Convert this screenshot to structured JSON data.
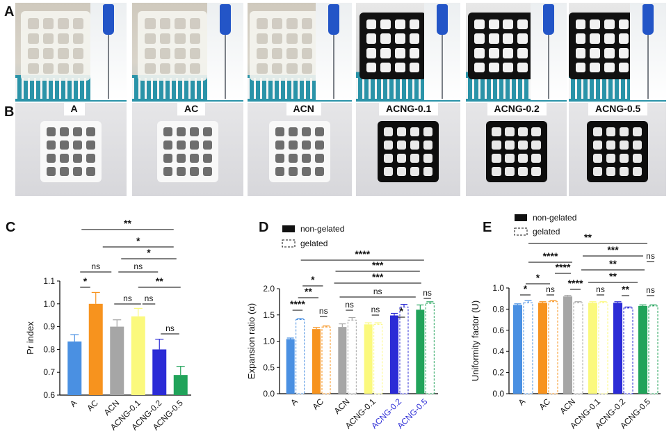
{
  "panel_letters": {
    "a": "A",
    "b": "B",
    "c": "C",
    "d": "D",
    "e": "E"
  },
  "sample_labels": [
    "A",
    "AC",
    "ACN",
    "ACNG-0.1",
    "ACNG-0.2",
    "ACNG-0.5"
  ],
  "colors": {
    "A": "#4a90e2",
    "AC": "#f7931e",
    "ACN": "#a6a6a6",
    "ACNG-0.1": "#fbf97d",
    "ACNG-0.2": "#2b2bd6",
    "ACNG-0.5": "#21a35a"
  },
  "chart_data": [
    {
      "type": "bar",
      "panel": "C",
      "categories": [
        "A",
        "AC",
        "ACN",
        "ACNG-0.1",
        "ACNG-0.2",
        "ACNG-0.5"
      ],
      "values": [
        0.835,
        1.0,
        0.9,
        0.945,
        0.8,
        0.688
      ],
      "errors": [
        0.03,
        0.05,
        0.03,
        0.035,
        0.045,
        0.038
      ],
      "ylabel": "Pr index",
      "ylim": [
        0.6,
        1.1
      ],
      "yticks": [
        "0.6",
        "0.7",
        "0.8",
        "0.9",
        "1.0",
        "1.1"
      ],
      "significance": [
        {
          "from": 2,
          "to": 4,
          "label": "ns"
        },
        {
          "from": 1,
          "to": 3,
          "label": "ns"
        },
        {
          "from": 3,
          "to": 4,
          "label": "ns"
        },
        {
          "from": 4,
          "to": 5,
          "label": "ns"
        },
        {
          "from": 0,
          "to": 2,
          "label": "ns"
        },
        {
          "from": 0,
          "to": 1,
          "label": "*"
        },
        {
          "from": 3,
          "to": 5,
          "label": "**"
        },
        {
          "from": 2,
          "to": 5,
          "label": "*"
        },
        {
          "from": 1,
          "to": 5,
          "label": "*"
        },
        {
          "from": 1,
          "to": 5,
          "label": "**"
        }
      ]
    },
    {
      "type": "bar",
      "panel": "D",
      "categories": [
        "A",
        "AC",
        "ACN",
        "ACNG-0.1",
        "ACNG-0.2",
        "ACNG-0.5"
      ],
      "series": [
        {
          "name": "non-gelated",
          "values": [
            1.04,
            1.23,
            1.27,
            1.32,
            1.49,
            1.6
          ],
          "errors": [
            0.02,
            0.03,
            0.06,
            0.03,
            0.04,
            0.09
          ]
        },
        {
          "name": "gelated",
          "values": [
            1.41,
            1.27,
            1.4,
            1.32,
            1.65,
            1.72
          ],
          "errors": [
            0.02,
            0.02,
            0.05,
            0.03,
            0.05,
            0.03
          ]
        }
      ],
      "legend": [
        "non-gelated",
        "gelated"
      ],
      "ylabel": "Expansion ratio (α)",
      "ylim": [
        0.0,
        2.0
      ],
      "yticks": [
        "0.0",
        "0.5",
        "1.0",
        "1.5",
        "2.0"
      ],
      "significance": [
        {
          "from": 0,
          "to": 0.5,
          "label": "****"
        },
        {
          "from": 0,
          "to": 1,
          "label": "**"
        },
        {
          "from": 0.5,
          "to": 1.5,
          "label": "*"
        },
        {
          "from": 1,
          "to": 1.5,
          "label": "ns"
        },
        {
          "from": 2,
          "to": 2.5,
          "label": "ns"
        },
        {
          "from": 3,
          "to": 3.5,
          "label": "ns"
        },
        {
          "from": 4,
          "to": 4.5,
          "label": "*"
        },
        {
          "from": 5,
          "to": 5.5,
          "label": "ns"
        },
        {
          "from": 1.5,
          "to": 5.5,
          "label": "ns"
        },
        {
          "from": 1.5,
          "to": 5.5,
          "label": "***"
        },
        {
          "from": 0,
          "to": 5.5,
          "label": "***"
        },
        {
          "from": 0,
          "to": 5.5,
          "label": "****"
        }
      ]
    },
    {
      "type": "bar",
      "panel": "E",
      "categories": [
        "A",
        "AC",
        "ACN",
        "ACNG-0.1",
        "ACNG-0.2",
        "ACNG-0.5"
      ],
      "series": [
        {
          "name": "non-gelated",
          "values": [
            0.84,
            0.86,
            0.92,
            0.86,
            0.86,
            0.83
          ],
          "errors": [
            0.01,
            0.01,
            0.01,
            0.01,
            0.01,
            0.01
          ]
        },
        {
          "name": "gelated",
          "values": [
            0.86,
            0.87,
            0.86,
            0.86,
            0.81,
            0.83
          ],
          "errors": [
            0.02,
            0.01,
            0.01,
            0.01,
            0.01,
            0.01
          ]
        }
      ],
      "legend": [
        "non-gelated",
        "gelated"
      ],
      "ylabel": "Uniformity factor (U)",
      "ylim": [
        0.0,
        1.0
      ],
      "yticks": [
        "0.0",
        "0.2",
        "0.4",
        "0.6",
        "0.8",
        "1.0"
      ],
      "significance": [
        {
          "from": 0,
          "to": 0.5,
          "label": "*"
        },
        {
          "from": 1,
          "to": 1.5,
          "label": "ns"
        },
        {
          "from": 2,
          "to": 2.5,
          "label": "****"
        },
        {
          "from": 3,
          "to": 3.5,
          "label": "ns"
        },
        {
          "from": 4,
          "to": 4.5,
          "label": "**"
        },
        {
          "from": 5,
          "to": 5.5,
          "label": "ns"
        },
        {
          "from": 0,
          "to": 1.5,
          "label": "*"
        },
        {
          "from": 2,
          "to": 4.5,
          "label": "ns"
        },
        {
          "from": 2,
          "to": 5.5,
          "label": "**"
        },
        {
          "from": 0,
          "to": 2.5,
          "label": "****"
        },
        {
          "from": 1,
          "to": 2.5,
          "label": "****"
        },
        {
          "from": 3,
          "to": 5.5,
          "label": "ns"
        },
        {
          "from": 2,
          "to": 5.5,
          "label": "**"
        },
        {
          "from": 2,
          "to": 5.5,
          "label": "***"
        },
        {
          "from": 0,
          "to": 5.5,
          "label": "**"
        }
      ]
    }
  ]
}
